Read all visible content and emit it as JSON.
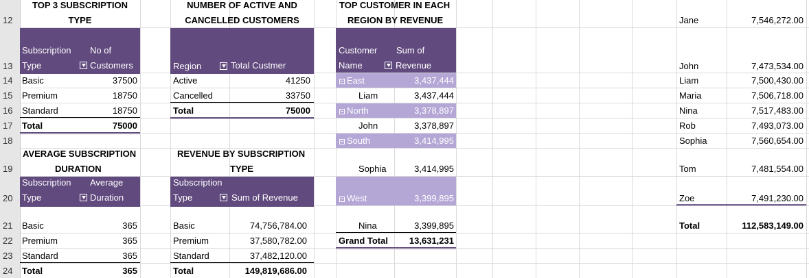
{
  "row_numbers": [
    "12",
    "13",
    "14",
    "15",
    "16",
    "17",
    "18",
    "19",
    "20",
    "21",
    "22",
    "23",
    "24"
  ],
  "sub_type_table": {
    "title": [
      "TOP 3 SUBSCRIPTION",
      "TYPE"
    ],
    "col1": [
      "Subscription",
      "Type"
    ],
    "col2": [
      "No of",
      "Customers"
    ],
    "rows": [
      [
        "Basic",
        "37500"
      ],
      [
        "Premium",
        "18750"
      ],
      [
        "Standard",
        "18750"
      ]
    ],
    "total_label": "Total",
    "total_value": "75000"
  },
  "active_table": {
    "title": [
      "NUMBER OF ACTIVE AND",
      "CANCELLED CUSTOMERS"
    ],
    "col1": "Region",
    "col2": "Total Custmer",
    "rows": [
      [
        "Active",
        "41250"
      ],
      [
        "Cancelled",
        "33750"
      ]
    ],
    "total_label": "Total",
    "total_value": "75000"
  },
  "top_customer_table": {
    "title": [
      "TOP CUSTOMER IN EACH",
      "REGION BY REVENUE"
    ],
    "col1": [
      "Customer",
      "Name"
    ],
    "col2": [
      "Sum of",
      "Revenue"
    ],
    "groups": [
      {
        "region": "East",
        "value": "3,437,444",
        "name": "Liam",
        "name_value": "3,437,444"
      },
      {
        "region": "North",
        "value": "3,378,897",
        "name": "John",
        "name_value": "3,378,897"
      },
      {
        "region": "South",
        "value": "3,414,995",
        "name": "Sophia",
        "name_value": "3,414,995"
      },
      {
        "region": "West",
        "value": "3,399,895",
        "name": "Nina",
        "name_value": "3,399,895"
      }
    ],
    "grand_total_label": "Grand Total",
    "grand_total_value": "13,631,231"
  },
  "avg_duration_table": {
    "title": [
      "AVERAGE SUBSCRIPTION",
      "DURATION"
    ],
    "col1": [
      "Subscription",
      "Type"
    ],
    "col2": [
      "Average",
      "Duration"
    ],
    "rows": [
      [
        "Basic",
        "365"
      ],
      [
        "Premium",
        "365"
      ],
      [
        "Standard",
        "365"
      ]
    ],
    "total_label": "Total",
    "total_value": "365"
  },
  "revenue_table": {
    "title": [
      "REVENUE BY SUBSCRIPTION",
      "TYPE"
    ],
    "col1": [
      "Subscription",
      "Type"
    ],
    "col2": "Sum of Revenue",
    "rows": [
      [
        "Basic",
        "74,756,784.00"
      ],
      [
        "Premium",
        "37,580,782.00"
      ],
      [
        "Standard",
        "37,482,120.00"
      ]
    ],
    "total_label": "Total",
    "total_value": "149,819,686.00"
  },
  "customer_list": {
    "rows": [
      [
        "Jane",
        "7,546,272.00"
      ],
      [
        "John",
        "7,473,534.00"
      ],
      [
        "Liam",
        "7,500,430.00"
      ],
      [
        "Maria",
        "7,506,718.00"
      ],
      [
        "Nina",
        "7,517,483.00"
      ],
      [
        "Rob",
        "7,493,073.00"
      ],
      [
        "Sophia",
        "7,560,654.00"
      ],
      [
        "Tom",
        "7,481,554.00"
      ],
      [
        "Zoe",
        "7,491,230.00"
      ]
    ],
    "total_label": "Total",
    "total_value": "112,583,149.00"
  }
}
